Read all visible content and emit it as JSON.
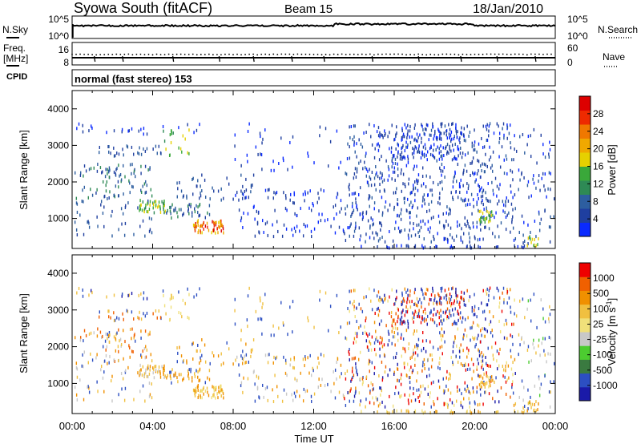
{
  "header": {
    "station": "Syowa South (fitACF)",
    "beam": "Beam 15",
    "date": "18/Jan/2010"
  },
  "noise_panel": {
    "left_label": "N.Sky",
    "right_label": "N.Search",
    "left_ticks": [
      "10^5",
      "10^0"
    ],
    "right_ticks": [
      "10^5",
      "10^0"
    ]
  },
  "freq_panel": {
    "left_label_line1": "Freq.",
    "left_label_line2": "[MHz]",
    "right_label": "Nave",
    "left_ticks": [
      "16",
      "8"
    ],
    "right_ticks": [
      "60",
      "0"
    ]
  },
  "cpid": {
    "label": "CPID",
    "text": "normal (fast stereo) 153"
  },
  "power_panel": {
    "ylabel": "Slant Range [km]",
    "y_ticks": [
      "4000",
      "3000",
      "2000",
      "1000"
    ],
    "colorbar_label": "Power [dB]",
    "colorbar_ticks": [
      "28",
      "24",
      "20",
      "16",
      "12",
      "8",
      "4"
    ],
    "colorbar_colors": [
      "#0a2aff",
      "#1f3fa0",
      "#2d5ea0",
      "#2e8a55",
      "#3aa83a",
      "#e6d000",
      "#f0a800",
      "#f07800",
      "#ee2a00",
      "#dd0000"
    ]
  },
  "velocity_panel": {
    "ylabel": "Slant Range [km]",
    "y_ticks": [
      "4000",
      "3000",
      "2000",
      "1000"
    ],
    "colorbar_label": "Velocity [m s",
    "colorbar_label_sup": "-1",
    "colorbar_label_end": "]",
    "colorbar_ticks": [
      "1000",
      "500",
      "100",
      "25",
      "-25",
      "-100",
      "-500",
      "-1000"
    ],
    "colorbar_colors": [
      "#1a1aa8",
      "#2c4fc2",
      "#3a7a40",
      "#4ccc30",
      "#c8c8c8",
      "#f0e07a",
      "#f0c040",
      "#f09000",
      "#f06000",
      "#ee0000"
    ]
  },
  "x_axis": {
    "title": "Time UT",
    "ticks": [
      "00:00",
      "04:00",
      "08:00",
      "12:00",
      "16:00",
      "20:00",
      "00:00"
    ]
  },
  "chart_data": [
    {
      "type": "heatmap",
      "title": "Power [dB]",
      "xlabel": "Time UT",
      "ylabel": "Slant Range [km]",
      "xlim_hours": [
        0,
        24
      ],
      "ylim": [
        180,
        4500
      ],
      "zlim": [
        0,
        30
      ],
      "z_ticks": [
        4,
        8,
        12,
        16,
        20,
        24,
        28
      ],
      "features": [
        {
          "region": "Broad scatter 14:00–22:00 UT, 400–3600 km",
          "typical_power_db": 4
        },
        {
          "region": "Near-range echoes ~07:10 UT, 500–900 km",
          "typical_power_db": 20
        },
        {
          "region": "Echo band ~20:40 UT, ~1100 km",
          "typical_power_db": 14
        },
        {
          "region": "Streak ~04:00–04:30 UT, 1200–1500 km",
          "typical_power_db": 14
        }
      ]
    },
    {
      "type": "heatmap",
      "title": "Velocity [m s-1]",
      "xlabel": "Time UT",
      "ylabel": "Slant Range [km]",
      "xlim_hours": [
        0,
        24
      ],
      "ylim": [
        180,
        4500
      ],
      "zlim": [
        -1000,
        1000
      ],
      "z_ticks": [
        1000,
        500,
        100,
        25,
        -25,
        -100,
        -500,
        -1000
      ],
      "features": [
        {
          "region": "Mixed blue (positive) and red/orange (negative) velocities 15:00–20:00 UT",
          "typical_velocity": "-500 to 1000"
        },
        {
          "region": "Near-range echoes ~07:10 UT",
          "typical_velocity": -100
        }
      ]
    }
  ]
}
